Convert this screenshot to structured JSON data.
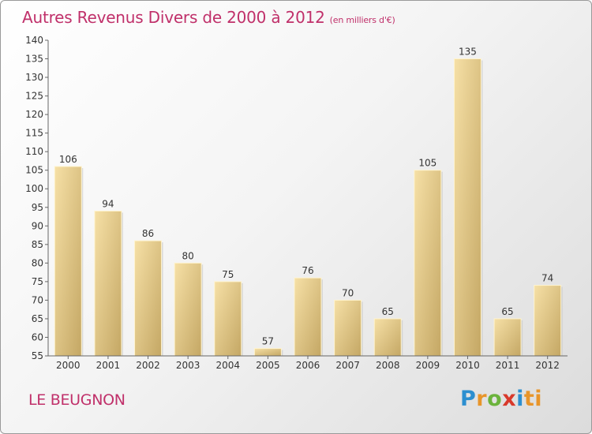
{
  "title": "Autres Revenus Divers de 2000 à 2012",
  "subtitle": "(en milliers d'€)",
  "location": "LE BEUGNON",
  "logo": {
    "parts": [
      "P",
      "r",
      "o",
      "x",
      "i",
      "ti"
    ]
  },
  "colors": {
    "title": "#c0306a",
    "bar_light": "#f3d897",
    "bar_dark": "#c8ad6a",
    "axis": "#555555"
  },
  "chart_data": {
    "type": "bar",
    "categories": [
      "2000",
      "2001",
      "2002",
      "2003",
      "2004",
      "2005",
      "2006",
      "2007",
      "2008",
      "2009",
      "2010",
      "2011",
      "2012"
    ],
    "values": [
      106,
      94,
      86,
      80,
      75,
      57,
      76,
      70,
      65,
      105,
      135,
      65,
      74
    ],
    "title": "Autres Revenus Divers de 2000 à 2012",
    "subtitle": "(en milliers d'€)",
    "ylim": [
      55,
      140
    ],
    "yticks": [
      55,
      60,
      65,
      70,
      75,
      80,
      85,
      90,
      95,
      100,
      105,
      110,
      115,
      120,
      125,
      130,
      135,
      140
    ],
    "grid": false,
    "data_labels": true
  }
}
